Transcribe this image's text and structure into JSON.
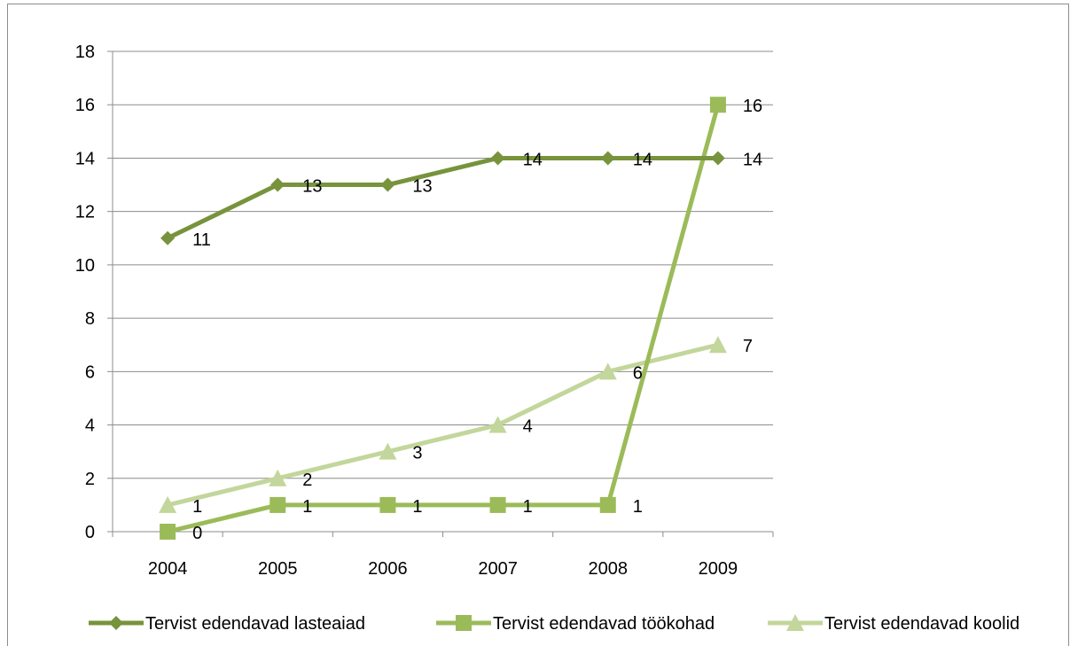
{
  "chart_data": {
    "type": "line",
    "categories": [
      "2004",
      "2005",
      "2006",
      "2007",
      "2008",
      "2009"
    ],
    "ylim": [
      0,
      18
    ],
    "y_ticks": [
      0,
      2,
      4,
      6,
      8,
      10,
      12,
      14,
      16,
      18
    ],
    "grid": true,
    "legend_position": "bottom",
    "series": [
      {
        "name": "Tervist edendavad lasteaiad",
        "marker": "diamond",
        "color": "#77933c",
        "values": [
          11,
          13,
          13,
          14,
          14,
          14
        ]
      },
      {
        "name": "Tervist edendavad töökohad",
        "marker": "square",
        "color": "#9bbb59",
        "values": [
          0,
          1,
          1,
          1,
          1,
          16
        ]
      },
      {
        "name": "Tervist edendavad koolid",
        "marker": "triangle",
        "color": "#c3d69b",
        "values": [
          1,
          2,
          3,
          4,
          6,
          7
        ]
      }
    ]
  }
}
